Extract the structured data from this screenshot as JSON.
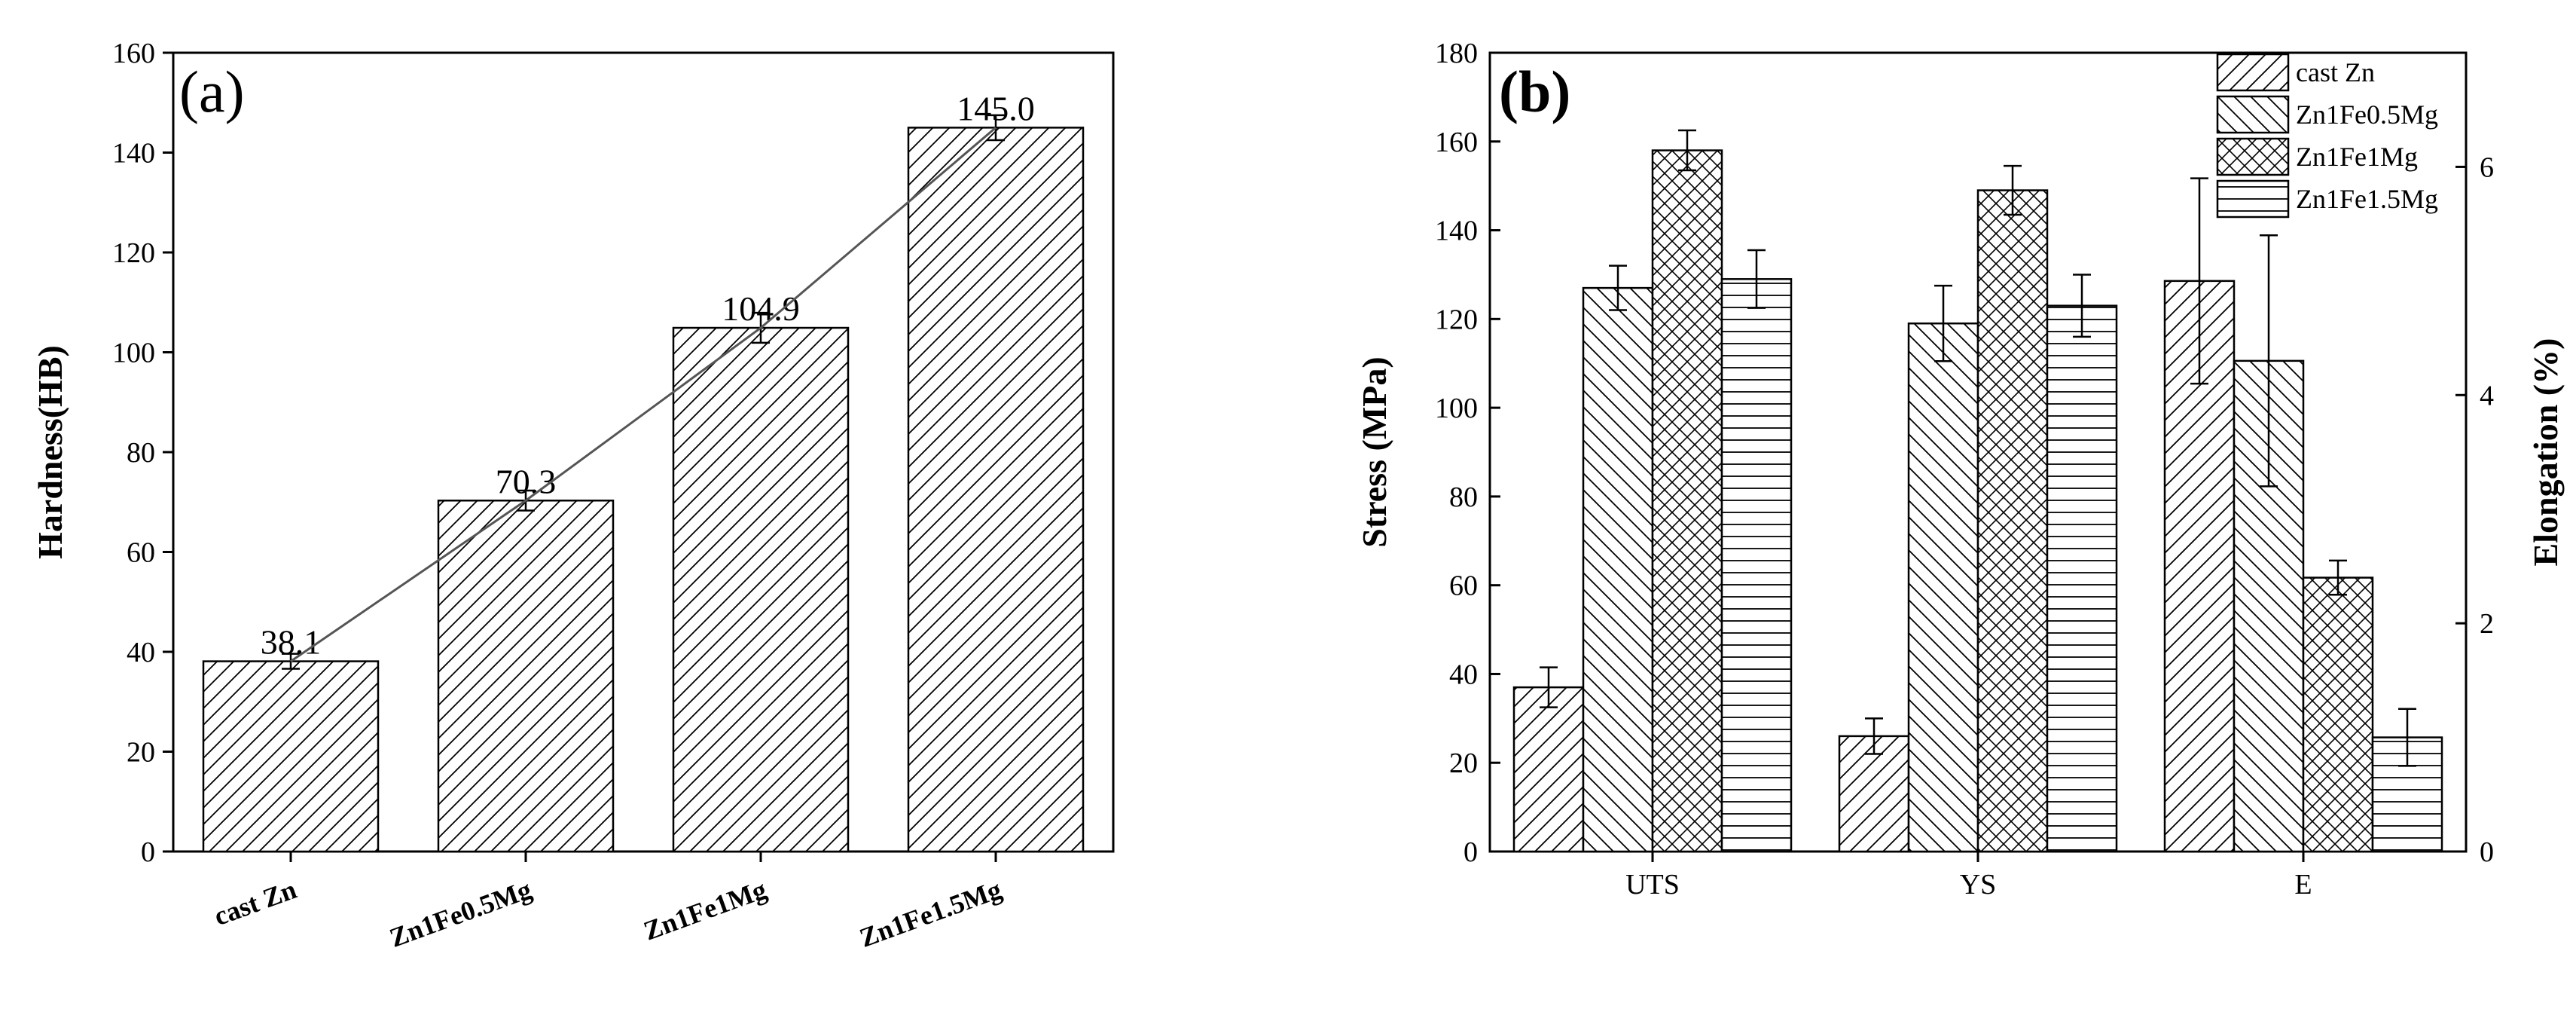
{
  "chart_data": [
    {
      "type": "bar",
      "panel_label": "(a)",
      "categories": [
        "cast Zn",
        "Zn1Fe0.5Mg",
        "Zn1Fe1Mg",
        "Zn1Fe1.5Mg"
      ],
      "values": [
        38.1,
        70.3,
        104.9,
        145.0
      ],
      "value_labels": [
        "38.1",
        "70.3",
        "104.9",
        "145.0"
      ],
      "errors": [
        1.5,
        2,
        3,
        2.5
      ],
      "ylabel": "Hardness(HB)",
      "ylim": [
        0,
        160
      ],
      "yticks": [
        0,
        20,
        40,
        60,
        80,
        100,
        120,
        140,
        160
      ],
      "trend_line": true,
      "grid": false
    },
    {
      "type": "bar",
      "panel_label": "(b)",
      "categories": [
        "UTS",
        "YS",
        "E"
      ],
      "series": [
        {
          "name": "cast Zn",
          "values": [
            37,
            26,
            5.0
          ],
          "errors": [
            4.5,
            4,
            0.9
          ]
        },
        {
          "name": "Zn1Fe0.5Mg",
          "values": [
            127,
            119,
            4.3
          ],
          "errors": [
            5,
            8.5,
            1.1
          ]
        },
        {
          "name": "Zn1Fe1Mg",
          "values": [
            158,
            149,
            2.4
          ],
          "errors": [
            4.5,
            5.5,
            0.15
          ]
        },
        {
          "name": "Zn1Fe1.5Mg",
          "values": [
            129,
            123,
            1.0
          ],
          "errors": [
            6.5,
            7,
            0.25
          ]
        }
      ],
      "ylabel": "Stress (MPa)",
      "ylim": [
        0,
        180
      ],
      "yticks": [
        0,
        20,
        40,
        60,
        80,
        100,
        120,
        140,
        160,
        180
      ],
      "y2label": "Elongation (%)",
      "y2lim": [
        0,
        7
      ],
      "y2ticks": [
        0,
        2,
        4,
        6
      ],
      "secondary_axis_categories": [
        "E"
      ],
      "legend_position": "top-right",
      "grid": false
    }
  ]
}
